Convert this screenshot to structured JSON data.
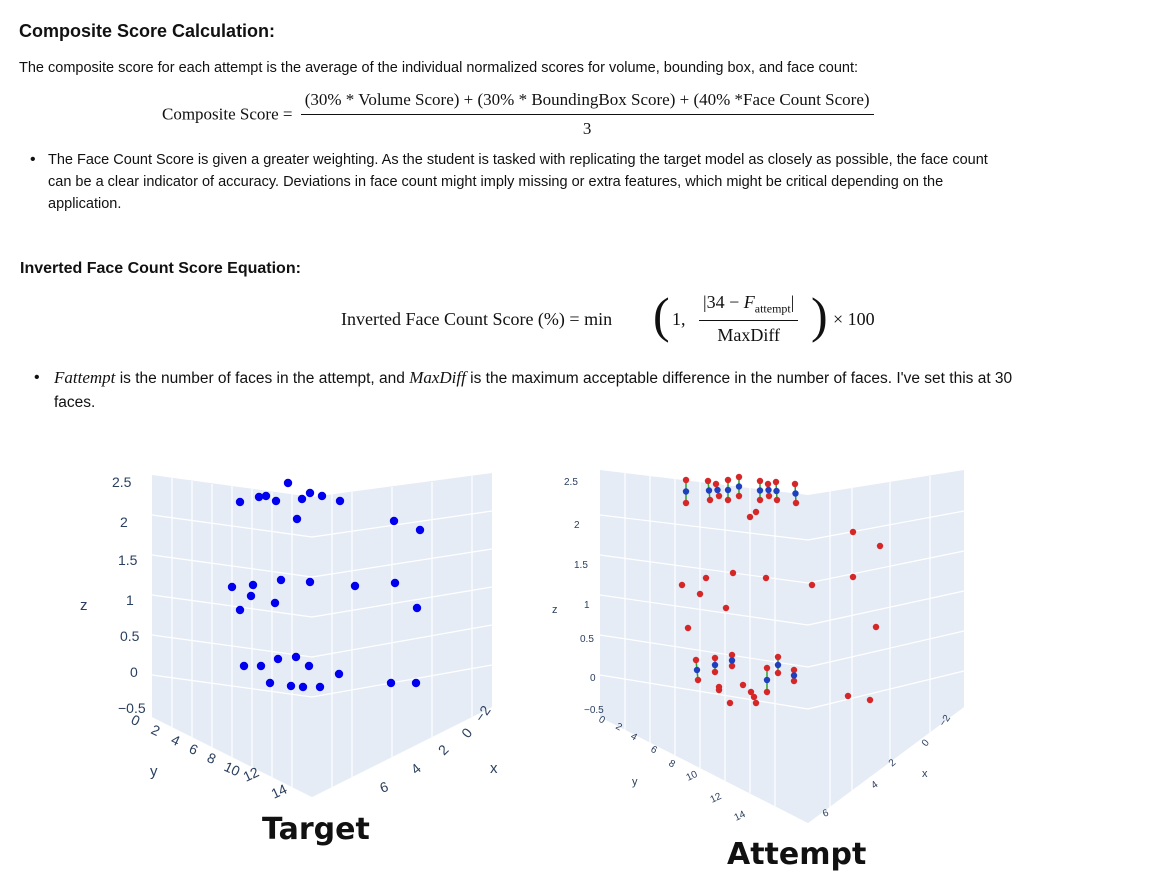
{
  "composite": {
    "heading": "Composite Score Calculation:",
    "intro": "The composite score for each attempt is the average of the individual normalized scores for volume, bounding box, and face count:",
    "eq_lhs": "Composite Score =",
    "eq_num": "(30% * Volume Score) + (30% * BoundingBox Score) + (40% *Face Count Score)",
    "eq_den": "3",
    "bullet_lines": [
      "The Face Count Score is given a greater weighting. As the student is tasked with replicating the target model as closely as possible, the face count",
      "can be a clear indicator of accuracy. Deviations in face count might imply missing or extra features, which might be critical depending on the",
      "application."
    ]
  },
  "inverted": {
    "heading": "Inverted Face Count Score Equation:",
    "eq_lhs": "Inverted Face Count Score (%) = min",
    "eq_one": "1,",
    "eq_num_a": "|34 − ",
    "eq_num_f": "F",
    "eq_num_sub": "attempt",
    "eq_num_b": "|",
    "eq_den": "MaxDiff",
    "eq_tail": "× 100",
    "bullet_line1_var1": "Fattempt",
    "bullet_line1_mid": " is the number of faces in the attempt, and ",
    "bullet_line1_var2": "MaxDiff",
    "bullet_line1_end": " is the maximum acceptable difference in the number of faces. I've set this at 30",
    "bullet_line2": "faces."
  },
  "plots": {
    "target": {
      "caption": "Target",
      "z_ticks": [
        "2.5",
        "2",
        "1.5",
        "1",
        "0.5",
        "0",
        "−0.5"
      ],
      "z_label": "z",
      "y_ticks": [
        "0",
        "2",
        "4",
        "6",
        "8",
        "10",
        "12",
        "14"
      ],
      "y_label": "y",
      "x_ticks": [
        "6",
        "4",
        "2",
        "0",
        "−2"
      ],
      "x_label": "x",
      "point_color": "#0000ee"
    },
    "attempt": {
      "caption": "Attempt",
      "z_ticks": [
        "2.5",
        "2",
        "1.5",
        "1",
        "0.5",
        "0",
        "−0.5"
      ],
      "z_label": "z",
      "y_ticks": [
        "0",
        "2",
        "4",
        "6",
        "8",
        "10",
        "12",
        "14"
      ],
      "y_label": "y",
      "x_ticks": [
        "6",
        "4",
        "2",
        "0",
        "−2"
      ],
      "x_label": "x",
      "red_color": "#d62728",
      "blue_color": "#1f3fbf",
      "line_color": "#2ca02c"
    }
  }
}
